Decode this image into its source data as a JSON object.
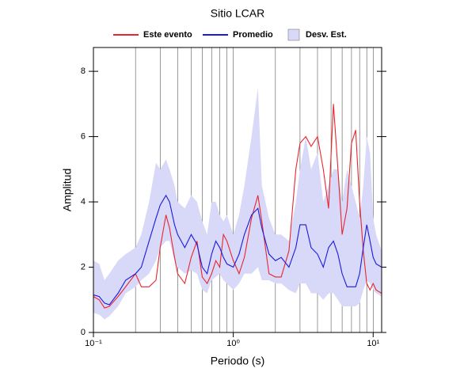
{
  "chart_data": {
    "type": "line",
    "title": "Sitio LCAR",
    "xlabel": "Periodo (s)",
    "ylabel": "Amplitud",
    "xscale": "log",
    "xlim": [
      0.1,
      11.5
    ],
    "ylim": [
      0,
      8.73
    ],
    "xticks": [
      {
        "value": 0.1,
        "label": "10⁻¹"
      },
      {
        "value": 1,
        "label": "10⁰"
      },
      {
        "value": 10,
        "label": "10¹"
      }
    ],
    "xminorticks": [
      0.2,
      0.3,
      0.4,
      0.5,
      0.6,
      0.7,
      0.8,
      0.9,
      2,
      3,
      4,
      5,
      6,
      7,
      8,
      9
    ],
    "yticks": [
      0,
      2,
      4,
      6,
      8
    ],
    "grid": true,
    "x": [
      0.1,
      0.11,
      0.12,
      0.13,
      0.15,
      0.17,
      0.2,
      0.22,
      0.25,
      0.28,
      0.3,
      0.33,
      0.35,
      0.38,
      0.4,
      0.45,
      0.5,
      0.55,
      0.6,
      0.65,
      0.7,
      0.75,
      0.8,
      0.85,
      0.9,
      1.0,
      1.1,
      1.2,
      1.35,
      1.5,
      1.6,
      1.8,
      2.0,
      2.2,
      2.5,
      2.8,
      3.0,
      3.3,
      3.6,
      4.0,
      4.4,
      4.8,
      5.2,
      5.6,
      6.0,
      6.5,
      7.0,
      7.5,
      8.0,
      8.5,
      9.0,
      9.5,
      10,
      10.5,
      11.5
    ],
    "series": [
      {
        "name": "Este evento",
        "color": "#e8262c",
        "values": [
          1.1,
          1.0,
          0.75,
          0.8,
          1.1,
          1.4,
          1.8,
          1.4,
          1.4,
          1.6,
          2.6,
          3.6,
          3.2,
          2.3,
          1.8,
          1.5,
          2.3,
          2.8,
          1.7,
          1.5,
          1.8,
          2.2,
          2.0,
          3.0,
          2.8,
          2.2,
          1.8,
          2.3,
          3.5,
          4.2,
          3.4,
          1.8,
          1.7,
          1.7,
          2.5,
          5.0,
          5.8,
          6.0,
          5.7,
          6.0,
          5.0,
          3.8,
          7.0,
          5.0,
          3.0,
          3.8,
          5.8,
          6.2,
          4.0,
          2.5,
          1.5,
          1.3,
          1.5,
          1.3,
          1.2
        ]
      },
      {
        "name": "Promedio",
        "color": "#1a1adf",
        "values": [
          1.15,
          1.1,
          0.9,
          0.85,
          1.2,
          1.6,
          1.8,
          2.0,
          2.8,
          3.5,
          3.9,
          4.2,
          4.0,
          3.3,
          3.0,
          2.6,
          3.0,
          2.7,
          2.0,
          1.8,
          2.4,
          2.8,
          2.6,
          2.3,
          2.1,
          2.0,
          2.4,
          3.0,
          3.6,
          3.8,
          3.2,
          2.4,
          2.2,
          2.3,
          2.0,
          2.6,
          3.3,
          3.3,
          2.6,
          2.4,
          2.0,
          2.6,
          2.8,
          2.4,
          1.8,
          1.4,
          1.4,
          1.4,
          1.8,
          2.6,
          3.3,
          2.8,
          2.3,
          2.1,
          2.0
        ]
      },
      {
        "name": "Desv. Est.",
        "color": "#d8d8f8",
        "upper": [
          2.2,
          2.1,
          1.6,
          1.8,
          2.2,
          2.4,
          2.6,
          3.0,
          4.0,
          5.2,
          5.0,
          5.3,
          5.0,
          4.5,
          4.0,
          3.8,
          4.2,
          4.0,
          3.4,
          3.0,
          4.0,
          4.0,
          3.6,
          3.4,
          3.6,
          3.0,
          3.6,
          4.5,
          6.0,
          7.5,
          4.5,
          3.5,
          3.0,
          3.0,
          2.8,
          4.0,
          5.0,
          6.0,
          5.0,
          5.5,
          4.0,
          4.5,
          5.0,
          5.0,
          4.0,
          5.0,
          4.5,
          4.0,
          3.5,
          4.5,
          6.0,
          5.5,
          3.5,
          3.0,
          2.5
        ],
        "lower": [
          0.6,
          0.55,
          0.4,
          0.5,
          0.8,
          1.2,
          1.4,
          1.6,
          1.8,
          2.2,
          2.6,
          2.8,
          2.8,
          2.2,
          2.0,
          1.8,
          1.9,
          1.8,
          1.3,
          1.2,
          1.6,
          1.7,
          1.8,
          1.6,
          1.5,
          1.3,
          1.5,
          1.8,
          1.8,
          2.0,
          1.6,
          1.6,
          1.5,
          1.5,
          1.3,
          1.2,
          1.5,
          1.5,
          1.2,
          1.2,
          1.0,
          1.2,
          1.2,
          1.0,
          0.8,
          0.8,
          0.8,
          0.8,
          0.9,
          1.3,
          1.6,
          1.5,
          1.3,
          1.2,
          1.1
        ]
      }
    ]
  }
}
